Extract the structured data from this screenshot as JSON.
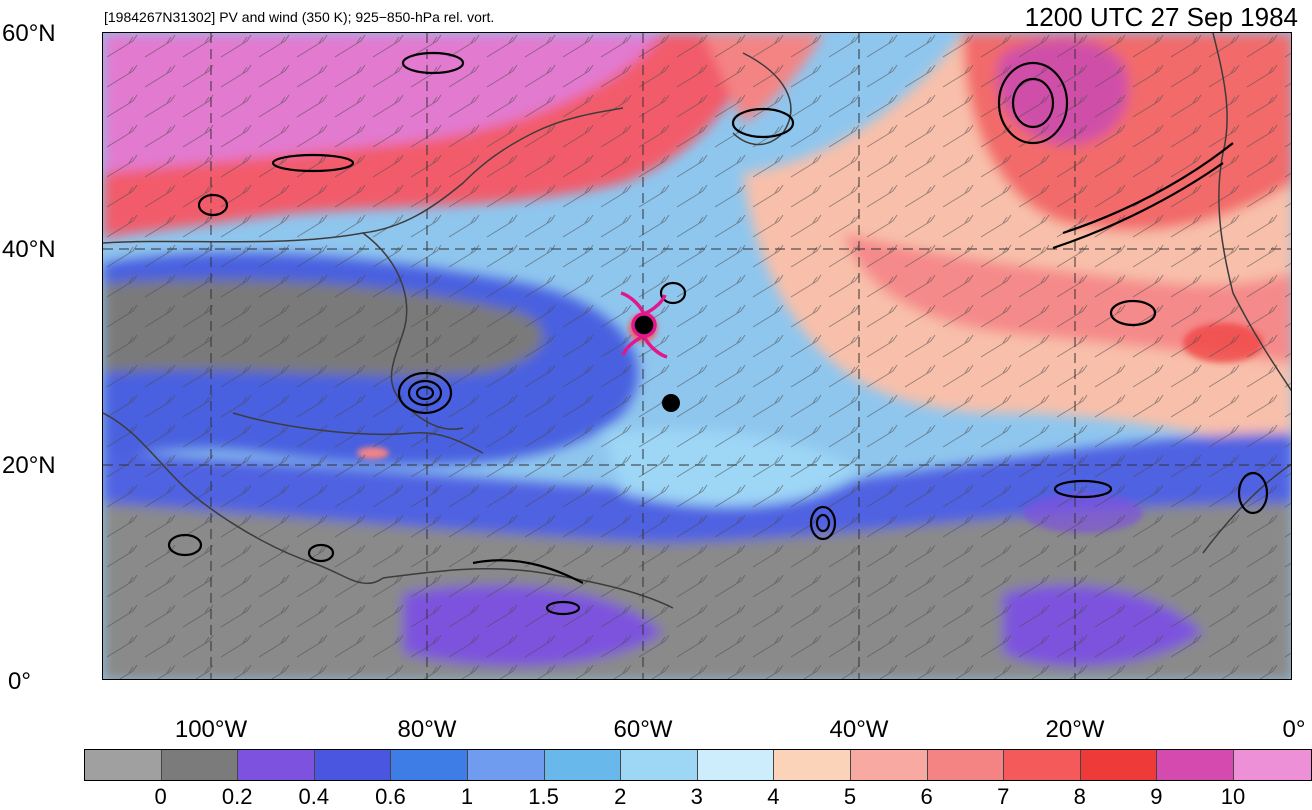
{
  "header": {
    "subtitle": "[1984267N31302] PV and wind (350 K); 925−850-hPa rel. vort.",
    "valid_time": "1200 UTC 27 Sep 1984"
  },
  "axes": {
    "lat_labels": [
      "60°N",
      "40°N",
      "20°N",
      "0°"
    ],
    "lon_labels": [
      "100°W",
      "80°W",
      "60°W",
      "40°W",
      "20°W",
      "0°"
    ]
  },
  "colorbar": {
    "colors": [
      "#a0a0a0",
      "#7b7b7b",
      "#7d52de",
      "#4a55e0",
      "#3f7de6",
      "#6f9cee",
      "#68b8ec",
      "#9ed6f6",
      "#cdecfc",
      "#fbd3b8",
      "#f8aaa2",
      "#f48484",
      "#f45a5a",
      "#ef3a3a",
      "#d54aae",
      "#ee90d8"
    ],
    "labels": [
      "0",
      "0.2",
      "0.4",
      "0.6",
      "1",
      "1.5",
      "2",
      "3",
      "4",
      "5",
      "6",
      "7",
      "8",
      "9",
      "10"
    ]
  },
  "storm_marker": {
    "icon": "tropical-cyclone-symbol-icon",
    "color": "#e0188a"
  }
}
